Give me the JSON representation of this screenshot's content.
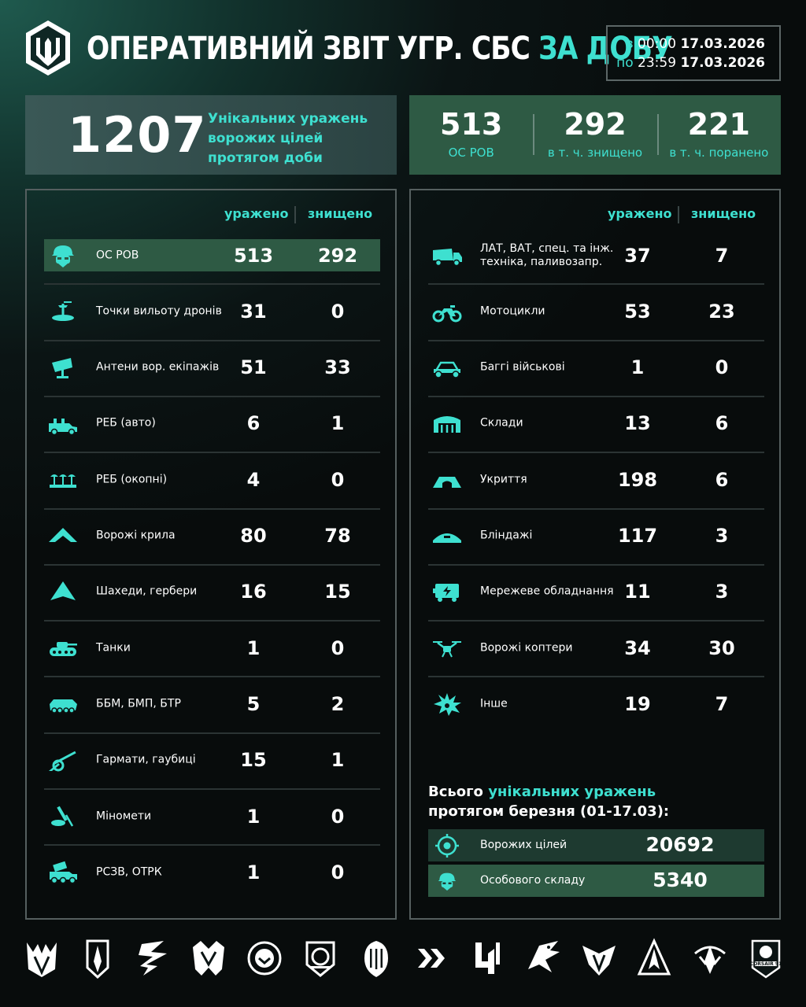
{
  "header": {
    "title_main": "ОПЕРАТИВНИЙ ЗВІТ УГР. СБС ",
    "title_accent": "ЗА ДОБУ",
    "period": {
      "from_label": "з",
      "from_time": "00:00",
      "from_date": "17.03.2026",
      "to_label": "по",
      "to_time": "23:59",
      "to_date": "17.03.2026"
    }
  },
  "total": {
    "value": "1207",
    "caption_line1": "Унікальних уражень",
    "caption_line2": "ворожих цілей",
    "caption_line3": "протягом доби"
  },
  "personnel": [
    {
      "value": "513",
      "label": "ОС РОВ"
    },
    {
      "value": "292",
      "label": "в т. ч. знищено"
    },
    {
      "value": "221",
      "label": "в т. ч. поранено"
    }
  ],
  "columns": {
    "hit": "уражено",
    "destroyed": "знищено"
  },
  "left_rows": [
    {
      "icon": "soldier-icon",
      "line1": "ОС РОВ",
      "line2": "",
      "hit": "513",
      "destroyed": "292"
    },
    {
      "icon": "drone-launch-point-icon",
      "line1": "Точки вильоту дронів",
      "line2": "",
      "hit": "31",
      "destroyed": "0"
    },
    {
      "icon": "antenna-icon",
      "line1": "Антени вор. екіпажів",
      "line2": "",
      "hit": "51",
      "destroyed": "33"
    },
    {
      "icon": "ew-vehicle-icon",
      "line1": "РЕБ (авто)",
      "line2": "",
      "hit": "6",
      "destroyed": "1"
    },
    {
      "icon": "ew-trench-icon",
      "line1": "РЕБ (окопні)",
      "line2": "",
      "hit": "4",
      "destroyed": "0"
    },
    {
      "icon": "wing-icon",
      "line1": "Ворожі крила",
      "line2": "",
      "hit": "80",
      "destroyed": "78"
    },
    {
      "icon": "shahed-icon",
      "line1": "Шахеди, гербери",
      "line2": "",
      "hit": "16",
      "destroyed": "15"
    },
    {
      "icon": "tank-icon",
      "line1": "Танки",
      "line2": "",
      "hit": "1",
      "destroyed": "0"
    },
    {
      "icon": "apc-icon",
      "line1": "ББМ, БМП, БТР",
      "line2": "",
      "hit": "5",
      "destroyed": "2"
    },
    {
      "icon": "howitzer-icon",
      "line1": "Гармати, гаубиці",
      "line2": "",
      "hit": "15",
      "destroyed": "1"
    },
    {
      "icon": "mortar-icon",
      "line1": "Міномети",
      "line2": "",
      "hit": "1",
      "destroyed": "0"
    },
    {
      "icon": "mlrs-icon",
      "line1": "РСЗВ, ОТРК",
      "line2": "",
      "hit": "1",
      "destroyed": "0"
    }
  ],
  "right_rows": [
    {
      "icon": "truck-icon",
      "line1": "ЛАТ, ВАТ, спец. та інж.",
      "line2": "техніка, паливозапр.",
      "hit": "37",
      "destroyed": "7"
    },
    {
      "icon": "motorcycle-icon",
      "line1": "Мотоцикли",
      "line2": "",
      "hit": "53",
      "destroyed": "23"
    },
    {
      "icon": "buggy-icon",
      "line1": "Баггі військові",
      "line2": "",
      "hit": "1",
      "destroyed": "0"
    },
    {
      "icon": "warehouse-icon",
      "line1": "Склади",
      "line2": "",
      "hit": "13",
      "destroyed": "6"
    },
    {
      "icon": "shelter-icon",
      "line1": "Укриття",
      "line2": "",
      "hit": "198",
      "destroyed": "6"
    },
    {
      "icon": "dugout-icon",
      "line1": "Бліндажі",
      "line2": "",
      "hit": "117",
      "destroyed": "3"
    },
    {
      "icon": "network-equipment-icon",
      "line1": "Мережеве обладнання",
      "line2": "",
      "hit": "11",
      "destroyed": "3"
    },
    {
      "icon": "copter-icon",
      "line1": "Ворожі коптери",
      "line2": "",
      "hit": "34",
      "destroyed": "30"
    },
    {
      "icon": "explosion-icon",
      "line1": "Інше",
      "line2": "",
      "hit": "19",
      "destroyed": "7"
    }
  ],
  "month_summary": {
    "title_prefix": "Всього ",
    "title_accent": "унікальних уражень",
    "title_line2": "протягом березня (01-17.03):",
    "rows": [
      {
        "icon": "target-icon",
        "label": "Ворожих цілей",
        "value": "20692"
      },
      {
        "icon": "soldier-icon",
        "label": "Особового складу",
        "value": "5340"
      }
    ]
  },
  "footer_badge_label": "CORSAIR 91",
  "colors": {
    "accent": "#3ee0d0",
    "highlight": "#2e5a44",
    "panel_border": "#555f5f"
  }
}
